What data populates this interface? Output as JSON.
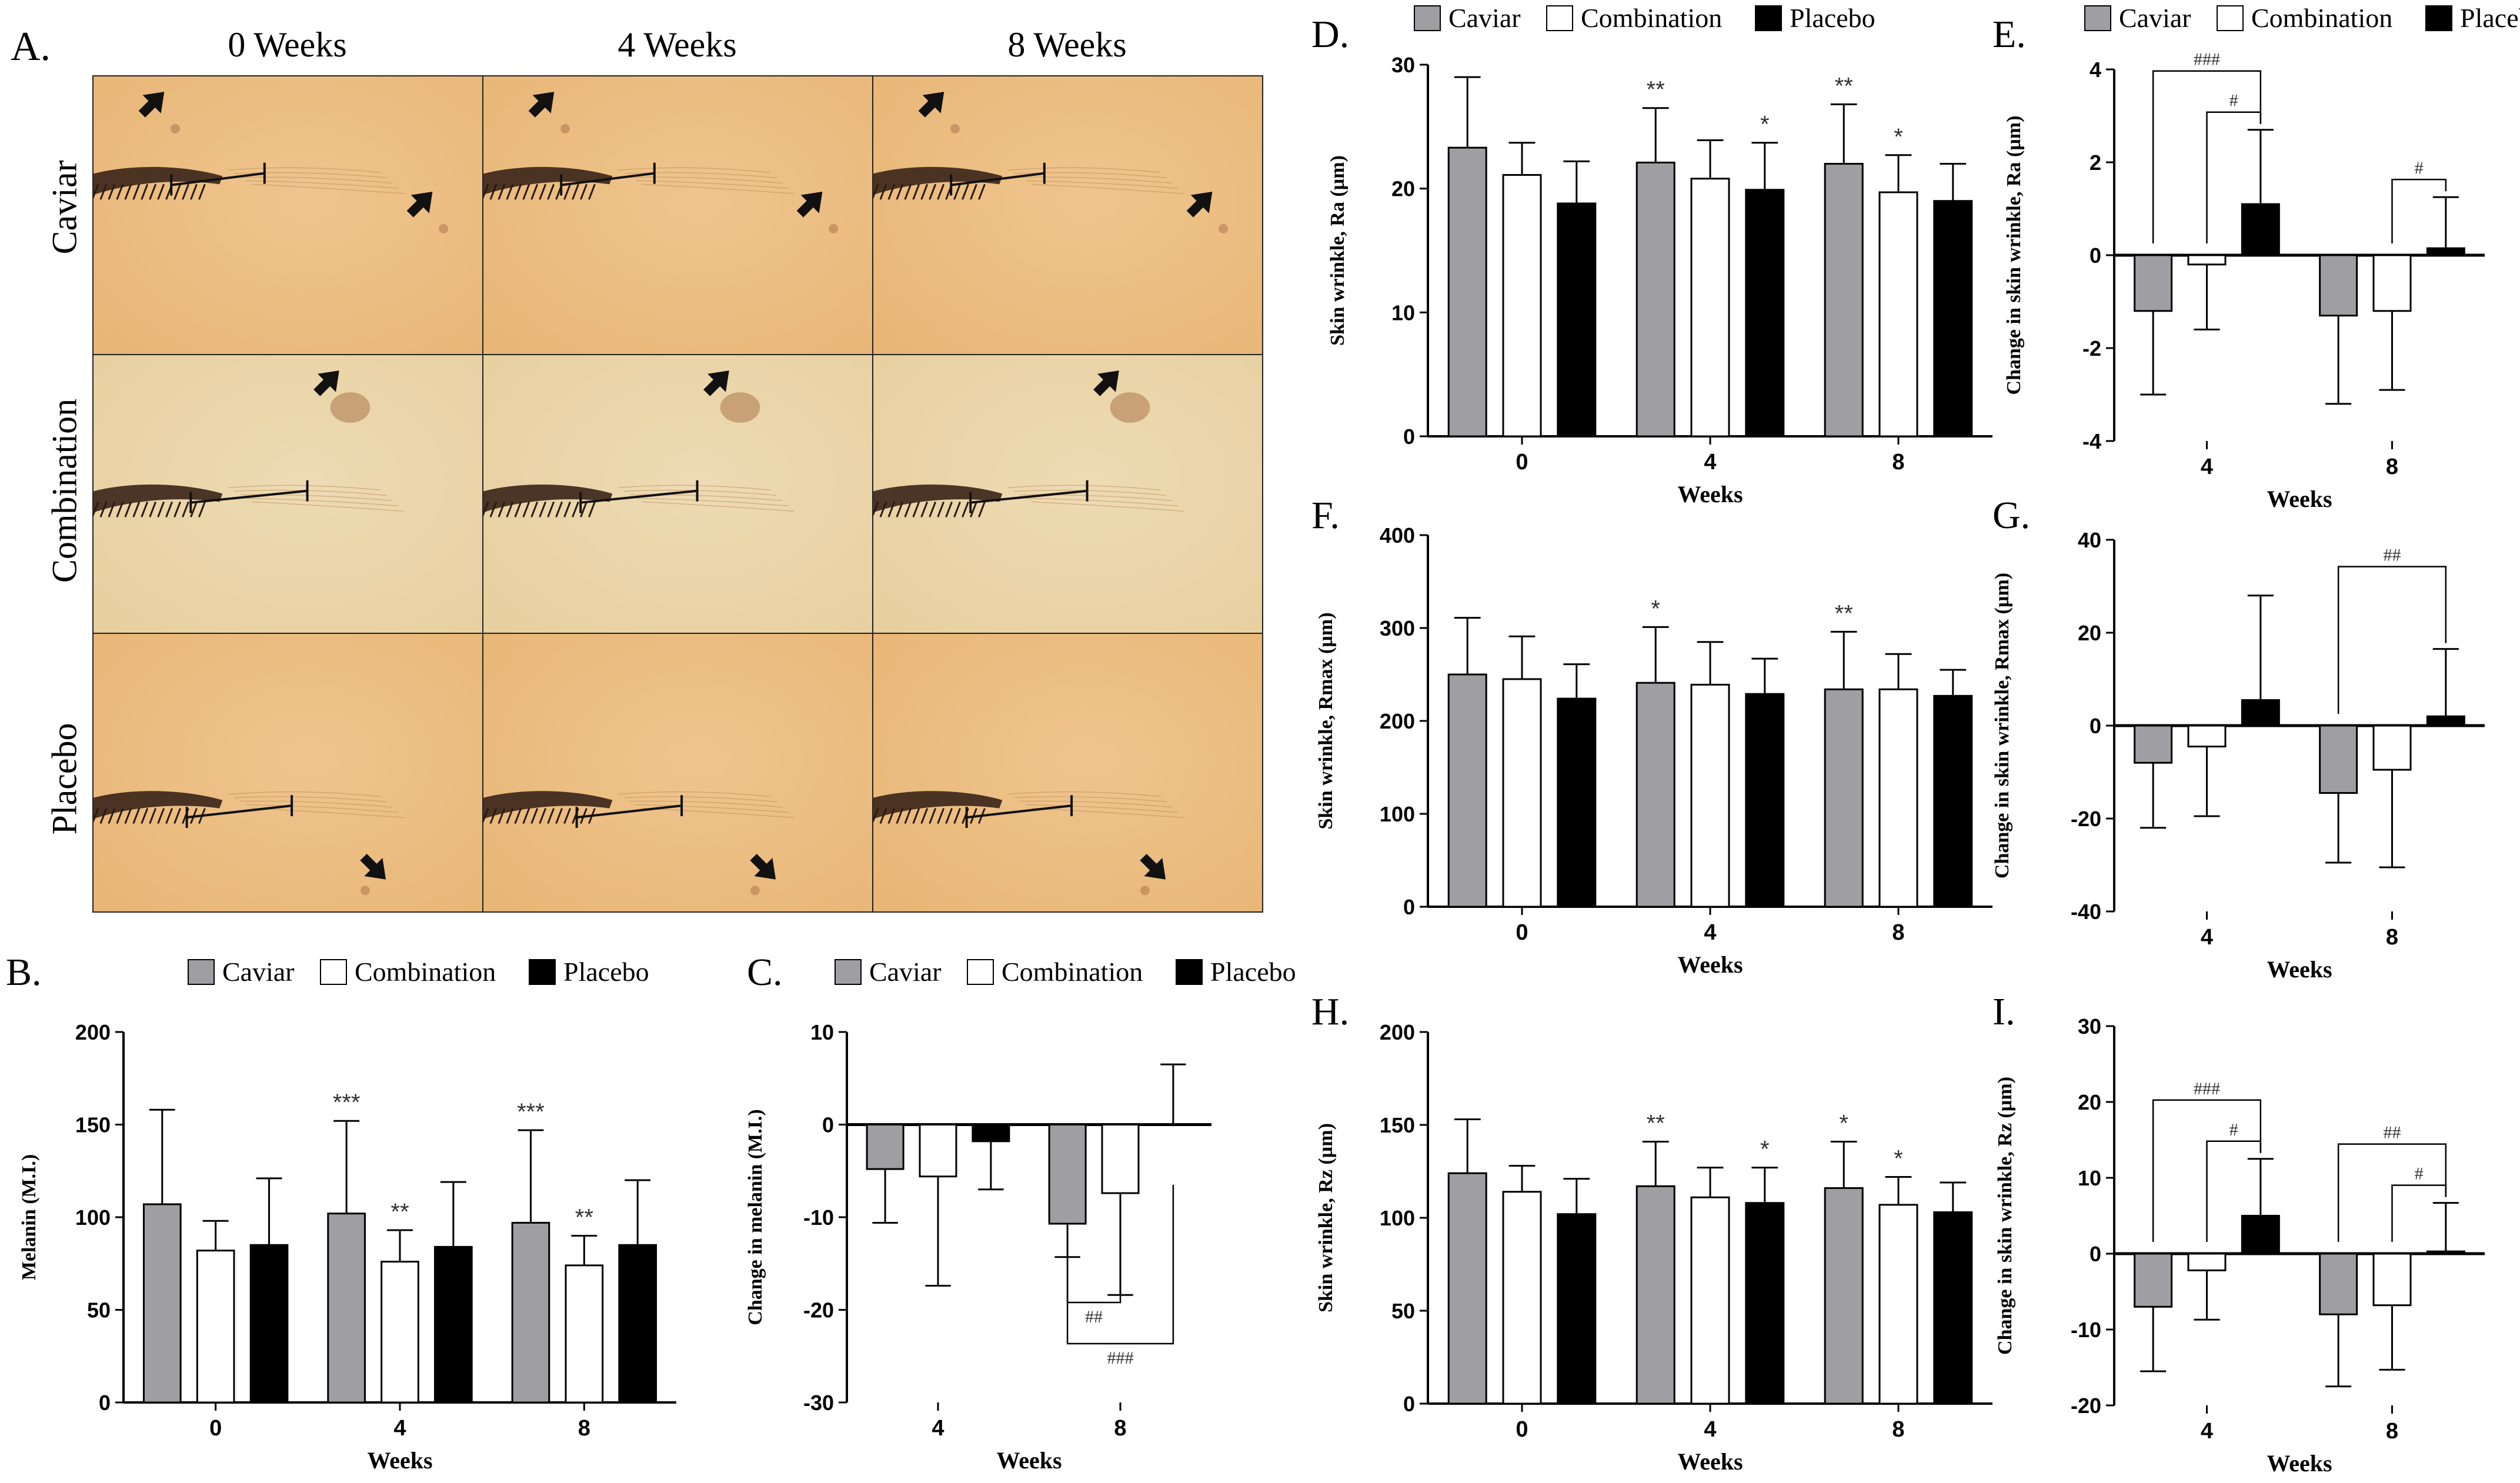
{
  "panelA": {
    "label": "A.",
    "columns": [
      "0 Weeks",
      "4 Weeks",
      "8 Weeks"
    ],
    "rows": [
      "Caviar",
      "Combination",
      "Placebo"
    ]
  },
  "colors": {
    "caviar": "#9e9ea3",
    "combination": "#ffffff",
    "placebo": "#000000",
    "skin_warm": "#e8b676",
    "skin_pale": "#e7cf9f"
  },
  "legend": [
    "Caviar",
    "Combination",
    "Placebo"
  ],
  "chart_data": [
    {
      "id": "B",
      "panel_label": "B.",
      "type": "bar",
      "categories": [
        "0",
        "4",
        "8"
      ],
      "series": [
        {
          "name": "Caviar",
          "values": [
            107,
            102,
            97
          ],
          "errors": [
            51,
            50,
            50
          ]
        },
        {
          "name": "Combination",
          "values": [
            82,
            76,
            74
          ],
          "errors": [
            16,
            17,
            16
          ]
        },
        {
          "name": "Placebo",
          "values": [
            85,
            84,
            85
          ],
          "errors": [
            36,
            35,
            35
          ]
        }
      ],
      "annotations": [
        {
          "category": 1,
          "series": 0,
          "text": "***"
        },
        {
          "category": 1,
          "series": 1,
          "text": "**"
        },
        {
          "category": 2,
          "series": 0,
          "text": "***"
        },
        {
          "category": 2,
          "series": 1,
          "text": "**"
        }
      ],
      "brackets": [],
      "xlabel": "Weeks",
      "ylabel": "Melanin (M.I.)",
      "ylim": [
        0,
        200
      ],
      "yticks": [
        0,
        50,
        100,
        150,
        200
      ]
    },
    {
      "id": "C",
      "panel_label": "C.",
      "type": "bar",
      "categories": [
        "4",
        "8"
      ],
      "series": [
        {
          "name": "Caviar",
          "values": [
            -4.8,
            -10.7
          ],
          "errors": [
            5.8,
            3.6
          ]
        },
        {
          "name": "Combination",
          "values": [
            -5.6,
            -7.4
          ],
          "errors": [
            11.8,
            11.0
          ]
        },
        {
          "name": "Placebo",
          "values": [
            -1.8,
            0.0
          ],
          "errors": [
            5.2,
            6.5
          ]
        }
      ],
      "annotations": [],
      "brackets": [
        {
          "category": 1,
          "from": 0,
          "to": 1,
          "text": "##"
        },
        {
          "category": 1,
          "from": 0,
          "to": 2,
          "text": "###"
        }
      ],
      "xlabel": "Weeks",
      "ylabel": "Change in melanin (M.I.)",
      "ylim": [
        -30,
        10
      ],
      "yticks": [
        -30,
        -20,
        -10,
        0,
        10
      ]
    },
    {
      "id": "D",
      "panel_label": "D.",
      "type": "bar",
      "categories": [
        "0",
        "4",
        "8"
      ],
      "series": [
        {
          "name": "Caviar",
          "values": [
            23.3,
            22.1,
            22.0
          ],
          "errors": [
            5.7,
            4.4,
            4.8
          ]
        },
        {
          "name": "Combination",
          "values": [
            21.1,
            20.8,
            19.7
          ],
          "errors": [
            2.6,
            3.1,
            3.0
          ]
        },
        {
          "name": "Placebo",
          "values": [
            18.8,
            19.9,
            19.0
          ],
          "errors": [
            3.4,
            3.8,
            3.0
          ]
        }
      ],
      "annotations": [
        {
          "category": 1,
          "series": 0,
          "text": "**"
        },
        {
          "category": 1,
          "series": 2,
          "text": "*"
        },
        {
          "category": 2,
          "series": 0,
          "text": "**"
        },
        {
          "category": 2,
          "series": 1,
          "text": "*"
        }
      ],
      "brackets": [],
      "xlabel": "Weeks",
      "ylabel": "Skin wrinkle, Ra (µm)",
      "ylim": [
        0,
        30
      ],
      "yticks": [
        0,
        10,
        20,
        30
      ]
    },
    {
      "id": "E",
      "panel_label": "E.",
      "type": "bar",
      "categories": [
        "4",
        "8"
      ],
      "series": [
        {
          "name": "Caviar",
          "values": [
            -1.2,
            -1.3
          ],
          "errors": [
            1.8,
            1.9
          ]
        },
        {
          "name": "Combination",
          "values": [
            -0.2,
            -1.2
          ],
          "errors": [
            1.4,
            1.7
          ]
        },
        {
          "name": "Placebo",
          "values": [
            1.1,
            0.15
          ],
          "errors": [
            1.6,
            1.1
          ]
        }
      ],
      "annotations": [],
      "brackets": [
        {
          "category": 0,
          "from": 0,
          "to": 2,
          "text": "###"
        },
        {
          "category": 0,
          "from": 1,
          "to": 2,
          "text": "#"
        },
        {
          "category": 1,
          "from": 1,
          "to": 2,
          "text": "#"
        }
      ],
      "xlabel": "Weeks",
      "ylabel": "Change in skin wrinkle, Ra (µm)",
      "ylim": [
        -4,
        4
      ],
      "yticks": [
        -4,
        -2,
        0,
        2,
        4
      ]
    },
    {
      "id": "F",
      "panel_label": "F.",
      "type": "bar",
      "categories": [
        "0",
        "4",
        "8"
      ],
      "series": [
        {
          "name": "Caviar",
          "values": [
            250,
            241,
            234
          ],
          "errors": [
            61,
            60,
            62
          ]
        },
        {
          "name": "Combination",
          "values": [
            245,
            239,
            234
          ],
          "errors": [
            46,
            46,
            38
          ]
        },
        {
          "name": "Placebo",
          "values": [
            224,
            229,
            227
          ],
          "errors": [
            37,
            38,
            28
          ]
        }
      ],
      "annotations": [
        {
          "category": 1,
          "series": 0,
          "text": "*"
        },
        {
          "category": 2,
          "series": 0,
          "text": "**"
        }
      ],
      "brackets": [],
      "xlabel": "Weeks",
      "ylabel": "Skin wrinkle, Rmax (µm)",
      "ylim": [
        0,
        400
      ],
      "yticks": [
        0,
        100,
        200,
        300,
        400
      ]
    },
    {
      "id": "G",
      "panel_label": "G.",
      "type": "bar",
      "categories": [
        "4",
        "8"
      ],
      "series": [
        {
          "name": "Caviar",
          "values": [
            -8,
            -14.5
          ],
          "errors": [
            14,
            15
          ]
        },
        {
          "name": "Combination",
          "values": [
            -4.5,
            -9.5
          ],
          "errors": [
            15,
            21
          ]
        },
        {
          "name": "Placebo",
          "values": [
            5.5,
            2
          ],
          "errors": [
            22.5,
            14.5
          ]
        }
      ],
      "annotations": [],
      "brackets": [
        {
          "category": 1,
          "from": 0,
          "to": 2,
          "text": "##"
        }
      ],
      "xlabel": "Weeks",
      "ylabel": "Change in skin wrinkle, Rmax (µm)",
      "ylim": [
        -40,
        40
      ],
      "yticks": [
        -40,
        -20,
        0,
        20,
        40
      ]
    },
    {
      "id": "H",
      "panel_label": "H.",
      "type": "bar",
      "categories": [
        "0",
        "4",
        "8"
      ],
      "series": [
        {
          "name": "Caviar",
          "values": [
            124,
            117,
            116
          ],
          "errors": [
            29,
            24,
            25
          ]
        },
        {
          "name": "Combination",
          "values": [
            114,
            111,
            107
          ],
          "errors": [
            14,
            16,
            15
          ]
        },
        {
          "name": "Placebo",
          "values": [
            102,
            108,
            103
          ],
          "errors": [
            19,
            19,
            16
          ]
        }
      ],
      "annotations": [
        {
          "category": 1,
          "series": 0,
          "text": "**"
        },
        {
          "category": 1,
          "series": 2,
          "text": "*"
        },
        {
          "category": 2,
          "series": 0,
          "text": "*"
        },
        {
          "category": 2,
          "series": 1,
          "text": "*"
        }
      ],
      "brackets": [],
      "xlabel": "Weeks",
      "ylabel": "Skin wrinkle, Rz (µm)",
      "ylim": [
        0,
        200
      ],
      "yticks": [
        0,
        50,
        100,
        150,
        200
      ]
    },
    {
      "id": "I",
      "panel_label": "I.",
      "type": "bar",
      "categories": [
        "4",
        "8"
      ],
      "series": [
        {
          "name": "Caviar",
          "values": [
            -7,
            -8
          ],
          "errors": [
            8.5,
            9.5
          ]
        },
        {
          "name": "Combination",
          "values": [
            -2.2,
            -6.8
          ],
          "errors": [
            6.5,
            8.5
          ]
        },
        {
          "name": "Placebo",
          "values": [
            5.0,
            0.3
          ],
          "errors": [
            7.5,
            6.4
          ]
        }
      ],
      "annotations": [],
      "brackets": [
        {
          "category": 0,
          "from": 0,
          "to": 2,
          "text": "###"
        },
        {
          "category": 0,
          "from": 1,
          "to": 2,
          "text": "#"
        },
        {
          "category": 1,
          "from": 0,
          "to": 2,
          "text": "##"
        },
        {
          "category": 1,
          "from": 1,
          "to": 2,
          "text": "#"
        }
      ],
      "xlabel": "Weeks",
      "ylabel": "Change in skin wrinkle, Rz (µm)",
      "ylim": [
        -20,
        30
      ],
      "yticks": [
        -20,
        -10,
        0,
        10,
        20,
        30
      ]
    }
  ]
}
